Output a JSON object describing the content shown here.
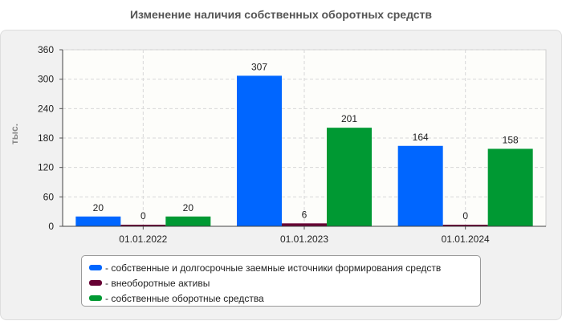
{
  "chart_data": {
    "type": "bar",
    "title": "Изменение наличия собственных оборотных средств",
    "ylabel": "тыс.",
    "xlabel": "",
    "categories": [
      "01.01.2022",
      "01.01.2023",
      "01.01.2024"
    ],
    "ylim": [
      0,
      360
    ],
    "yticks": [
      0,
      60,
      120,
      180,
      240,
      300,
      360
    ],
    "grid": true,
    "legend_position": "bottom",
    "series": [
      {
        "name": "- собственные и долгосрочные заемные источники формирования средств",
        "values": [
          20,
          307,
          164
        ],
        "color": "#0066ff"
      },
      {
        "name": "- внеоборотные активы",
        "values": [
          0,
          6,
          0
        ],
        "color": "#660033"
      },
      {
        "name": "- собственные оборотные средства",
        "values": [
          20,
          201,
          158
        ],
        "color": "#009933"
      }
    ]
  }
}
